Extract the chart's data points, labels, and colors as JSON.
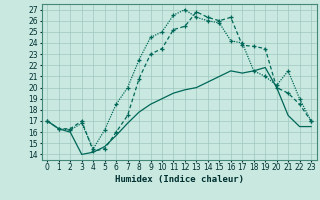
{
  "title": "",
  "xlabel": "Humidex (Indice chaleur)",
  "xlim": [
    -0.5,
    23.5
  ],
  "ylim": [
    13.5,
    27.5
  ],
  "xticks": [
    0,
    1,
    2,
    3,
    4,
    5,
    6,
    7,
    8,
    9,
    10,
    11,
    12,
    13,
    14,
    15,
    16,
    17,
    18,
    19,
    20,
    21,
    22,
    23
  ],
  "yticks": [
    14,
    15,
    16,
    17,
    18,
    19,
    20,
    21,
    22,
    23,
    24,
    25,
    26,
    27
  ],
  "bg_color": "#c8e8e0",
  "grid_color": "#a0c8c0",
  "line_color": "#006858",
  "line1_x": [
    0,
    1,
    2,
    3,
    4,
    5,
    6,
    7,
    8,
    9,
    10,
    11,
    12,
    13,
    14,
    15,
    16,
    17,
    18,
    19,
    20,
    21,
    22,
    23
  ],
  "line1_y": [
    17.0,
    16.3,
    16.3,
    17.0,
    14.3,
    14.5,
    16.0,
    17.5,
    20.8,
    23.0,
    23.5,
    25.2,
    25.5,
    26.8,
    26.3,
    26.0,
    26.3,
    23.8,
    23.7,
    23.5,
    20.0,
    19.5,
    18.5,
    17.0
  ],
  "line2_x": [
    0,
    1,
    2,
    3,
    4,
    5,
    6,
    7,
    8,
    9,
    10,
    11,
    12,
    13,
    14,
    15,
    16,
    17,
    18,
    19,
    20,
    21,
    22,
    23
  ],
  "line2_y": [
    17.0,
    16.3,
    16.2,
    16.8,
    14.5,
    16.2,
    18.5,
    20.0,
    22.5,
    24.5,
    25.0,
    26.5,
    27.0,
    26.3,
    26.0,
    25.8,
    24.2,
    24.0,
    21.5,
    21.0,
    20.2,
    21.5,
    19.0,
    17.0
  ],
  "line3_x": [
    0,
    1,
    2,
    3,
    4,
    5,
    6,
    7,
    8,
    9,
    10,
    11,
    12,
    13,
    14,
    15,
    16,
    17,
    18,
    19,
    20,
    21,
    22,
    23
  ],
  "line3_y": [
    17.0,
    16.3,
    16.0,
    14.0,
    14.2,
    14.7,
    15.7,
    16.8,
    17.8,
    18.5,
    19.0,
    19.5,
    19.8,
    20.0,
    20.5,
    21.0,
    21.5,
    21.3,
    21.5,
    21.8,
    20.0,
    17.5,
    16.5,
    16.5
  ],
  "tick_fontsize": 5.5,
  "xlabel_fontsize": 6.5
}
